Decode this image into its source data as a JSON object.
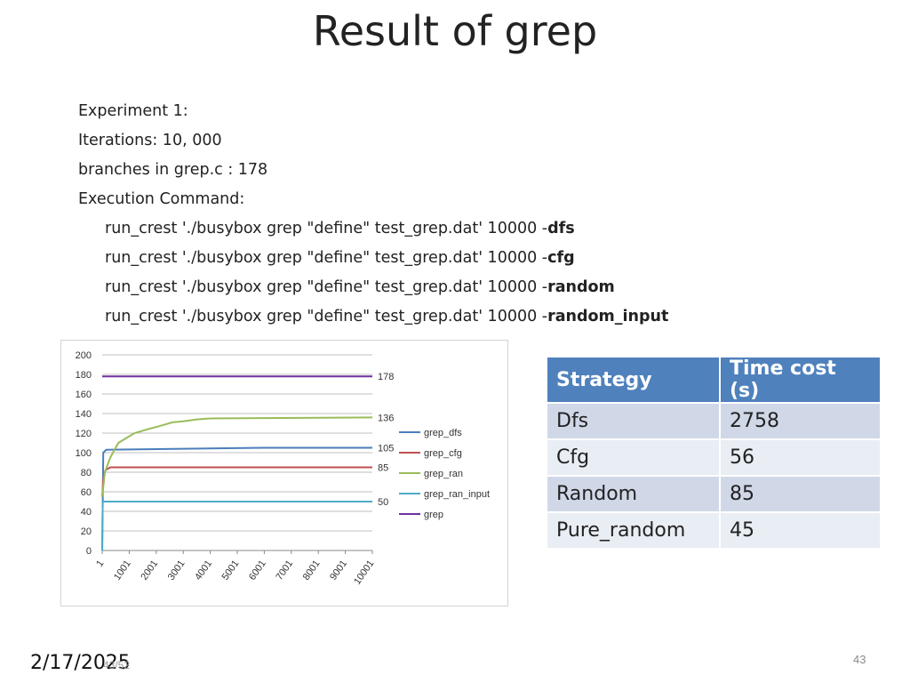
{
  "slide": {
    "title": "Result of grep",
    "lines": [
      "Experiment 1:",
      "Iterations: 10, 000",
      "branches in grep.c : 178",
      "Execution Command:"
    ],
    "commands": [
      {
        "prefix": "run_crest './busybox grep \"define\" test_grep.dat' 10000 -",
        "flag": "dfs"
      },
      {
        "prefix": "run_crest './busybox grep \"define\" test_grep.dat' 10000 -",
        "flag": "cfg"
      },
      {
        "prefix": "run_crest './busybox grep \"define\" test_grep.dat' 10000 -",
        "flag": "random"
      },
      {
        "prefix": "run_crest './busybox grep \"define\" test_grep.dat' 10000 -",
        "flag": "random_input"
      }
    ],
    "footer_date": "2/17/2025",
    "footer_small": "43/52",
    "page_number": "43"
  },
  "table": {
    "headers": [
      "Strategy",
      "Time cost (s)"
    ],
    "rows": [
      [
        "Dfs",
        "2758"
      ],
      [
        "Cfg",
        "56"
      ],
      [
        "Random",
        "85"
      ],
      [
        "Pure_random",
        "45"
      ]
    ]
  },
  "chart_data": {
    "type": "line",
    "y_ticks": [
      "0",
      "20",
      "40",
      "60",
      "80",
      "100",
      "120",
      "140",
      "160",
      "180",
      "200"
    ],
    "x_ticks": [
      "1",
      "1001",
      "2001",
      "3001",
      "4001",
      "5001",
      "6001",
      "7001",
      "8001",
      "9001",
      "10001"
    ],
    "ylim": [
      0,
      200
    ],
    "xlim": [
      1,
      10001
    ],
    "grid": true,
    "legend_position": "right",
    "end_labels": [
      "178",
      "136",
      "105",
      "85",
      "50"
    ],
    "series": [
      {
        "name": "grep_dfs",
        "color": "#4a7ebb",
        "points": [
          [
            1,
            0
          ],
          [
            40,
            100
          ],
          [
            150,
            103
          ],
          [
            3000,
            104
          ],
          [
            6000,
            105
          ],
          [
            10001,
            105
          ]
        ]
      },
      {
        "name": "grep_cfg",
        "color": "#c0504d",
        "points": [
          [
            1,
            55
          ],
          [
            50,
            75
          ],
          [
            120,
            82
          ],
          [
            300,
            85
          ],
          [
            10001,
            85
          ]
        ]
      },
      {
        "name": "grep_ran",
        "color": "#9bbb59",
        "points": [
          [
            1,
            55
          ],
          [
            100,
            80
          ],
          [
            300,
            95
          ],
          [
            600,
            110
          ],
          [
            900,
            115
          ],
          [
            1200,
            120
          ],
          [
            1700,
            124
          ],
          [
            2100,
            127
          ],
          [
            2600,
            131
          ],
          [
            3000,
            132
          ],
          [
            3500,
            134
          ],
          [
            4000,
            135
          ],
          [
            10001,
            136
          ]
        ]
      },
      {
        "name": "grep_ran_input",
        "color": "#4bacc6",
        "points": [
          [
            1,
            0
          ],
          [
            20,
            50
          ],
          [
            10001,
            50
          ]
        ]
      },
      {
        "name": "grep",
        "color": "#7030a0",
        "points": [
          [
            1,
            178
          ],
          [
            10001,
            178
          ]
        ]
      }
    ]
  }
}
